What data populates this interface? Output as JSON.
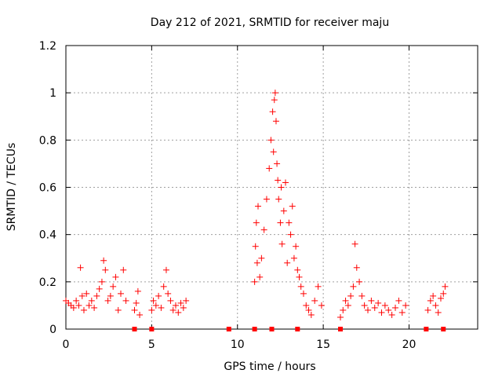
{
  "chart_data": {
    "type": "scatter",
    "title": "Day 212 of 2021, SRMTID for receiver maju",
    "xlabel": "GPS time / hours",
    "ylabel": "SRMTID / TECUs",
    "xlim": [
      0,
      24
    ],
    "ylim": [
      0,
      1.2
    ],
    "xticks": [
      0,
      5,
      10,
      15,
      20
    ],
    "xtick_labels": [
      "0",
      "5",
      "10",
      "15",
      "20"
    ],
    "yticks": [
      0,
      0.2,
      0.4,
      0.6,
      0.8,
      1,
      1.2
    ],
    "ytick_labels": [
      "0",
      "0.2",
      "0.4",
      "0.6",
      "0.8",
      "1",
      "1.2"
    ],
    "grid": true,
    "marker": "plus",
    "color": "#ff0000",
    "series": [
      {
        "name": "SRMTID",
        "segments": [
          {
            "x": [
              0.0,
              0.15,
              0.3,
              0.45,
              0.6,
              0.75,
              0.85,
              0.95,
              1.05,
              1.2,
              1.35,
              1.5,
              1.65,
              1.8,
              1.95,
              2.1,
              2.2,
              2.3,
              2.45,
              2.6,
              2.75,
              2.9,
              3.05,
              3.2,
              3.35,
              3.5
            ],
            "y": [
              0.12,
              0.11,
              0.1,
              0.09,
              0.12,
              0.1,
              0.26,
              0.14,
              0.08,
              0.15,
              0.1,
              0.12,
              0.09,
              0.14,
              0.17,
              0.2,
              0.29,
              0.25,
              0.12,
              0.14,
              0.18,
              0.22,
              0.08,
              0.15,
              0.25,
              0.12
            ]
          },
          {
            "x": [
              4.0,
              4.1,
              4.2,
              4.3
            ],
            "y": [
              0.08,
              0.11,
              0.16,
              0.06
            ]
          },
          {
            "x": [
              5.0,
              5.1,
              5.25,
              5.4,
              5.55,
              5.7,
              5.85,
              5.95,
              6.1,
              6.25,
              6.4,
              6.55,
              6.7,
              6.85,
              7.0
            ],
            "y": [
              0.08,
              0.12,
              0.1,
              0.14,
              0.09,
              0.18,
              0.25,
              0.15,
              0.12,
              0.08,
              0.1,
              0.07,
              0.11,
              0.09,
              0.12
            ]
          },
          {
            "x": [
              11.0,
              11.05,
              11.1,
              11.15,
              11.2,
              11.3,
              11.4,
              11.55,
              11.7,
              11.85,
              11.95,
              12.05,
              12.1,
              12.15,
              12.2,
              12.25,
              12.3,
              12.35,
              12.4,
              12.5,
              12.55,
              12.6,
              12.7,
              12.8,
              12.9,
              13.0,
              13.1,
              13.2,
              13.3,
              13.4,
              13.5,
              13.6,
              13.7,
              13.85,
              14.0,
              14.15,
              14.3,
              14.5,
              14.7,
              14.9
            ],
            "y": [
              0.2,
              0.35,
              0.45,
              0.28,
              0.52,
              0.22,
              0.3,
              0.42,
              0.55,
              0.68,
              0.8,
              0.92,
              0.75,
              0.97,
              1.0,
              0.88,
              0.7,
              0.63,
              0.55,
              0.45,
              0.6,
              0.36,
              0.5,
              0.62,
              0.28,
              0.45,
              0.4,
              0.52,
              0.3,
              0.35,
              0.25,
              0.22,
              0.18,
              0.15,
              0.1,
              0.08,
              0.06,
              0.12,
              0.18,
              0.1
            ]
          },
          {
            "x": [
              16.0,
              16.15,
              16.3,
              16.45,
              16.6,
              16.75,
              16.85,
              16.95,
              17.1,
              17.25,
              17.4,
              17.6,
              17.8,
              18.0,
              18.2,
              18.4,
              18.6,
              18.8,
              19.0,
              19.2,
              19.4,
              19.6,
              19.8
            ],
            "y": [
              0.05,
              0.08,
              0.12,
              0.1,
              0.14,
              0.18,
              0.36,
              0.26,
              0.2,
              0.14,
              0.1,
              0.08,
              0.12,
              0.09,
              0.11,
              0.07,
              0.1,
              0.08,
              0.06,
              0.09,
              0.12,
              0.07,
              0.1
            ]
          },
          {
            "x": [
              21.1,
              21.25,
              21.4,
              21.55,
              21.7,
              21.85,
              22.0,
              22.1
            ],
            "y": [
              0.08,
              0.12,
              0.14,
              0.1,
              0.07,
              0.13,
              0.15,
              0.18
            ]
          }
        ]
      }
    ],
    "gap_markers": [
      4.0,
      5.0,
      9.5,
      11.0,
      12.0,
      13.5,
      16.0,
      21.0,
      22.0
    ]
  }
}
